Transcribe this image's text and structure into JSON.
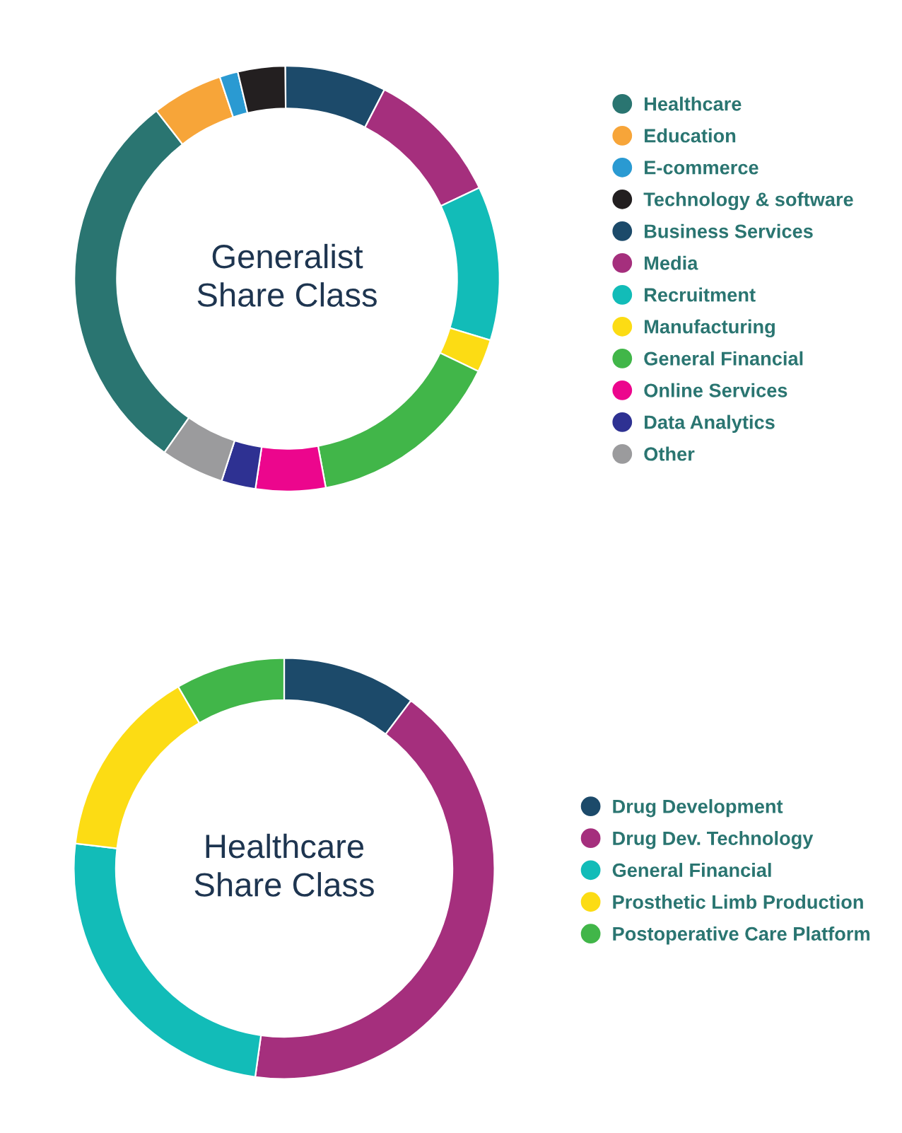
{
  "chart_data": [
    {
      "type": "donut",
      "title": "Generalist\nShare Class",
      "legend": "right",
      "categories": [
        "Healthcare",
        "Education",
        "E-commerce",
        "Technology & software",
        "Business Services",
        "Media",
        "Recruitment",
        "Manufacturing",
        "General Financial",
        "Online Services",
        "Data Analytics",
        "Other"
      ],
      "values": [
        29.7,
        5.4,
        1.4,
        3.6,
        7.7,
        10.4,
        11.7,
        2.5,
        14.9,
        5.3,
        2.6,
        4.8
      ],
      "colors": [
        "#2a7571",
        "#f7a539",
        "#2a9ad2",
        "#231f20",
        "#1c4a6a",
        "#a52f7d",
        "#12bcb8",
        "#fcdc14",
        "#41b649",
        "#ec068d",
        "#2e3192",
        "#9b9b9d"
      ]
    },
    {
      "type": "donut",
      "title": "Healthcare\nShare Class",
      "legend": "right",
      "categories": [
        "Drug Development",
        "Drug Dev. Technology",
        "General Financial",
        "Prosthetic Limb Production",
        "Postoperative Care Platform"
      ],
      "values": [
        10.3,
        41.9,
        24.7,
        14.7,
        8.4
      ],
      "colors": [
        "#1c4a6a",
        "#a52f7d",
        "#12bcb8",
        "#fcdc14",
        "#41b649"
      ]
    }
  ]
}
